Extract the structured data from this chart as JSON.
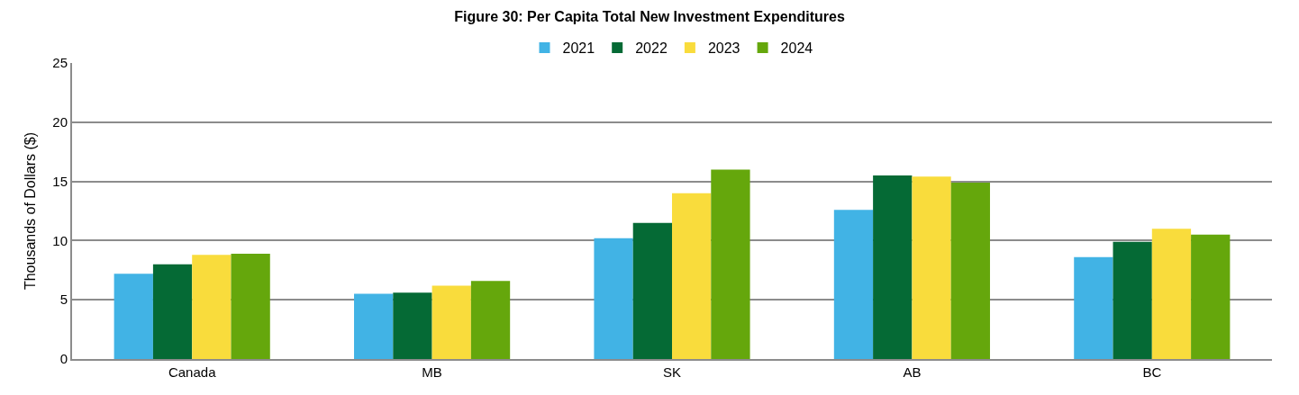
{
  "chart_data": {
    "type": "bar",
    "title": "Figure 30: Per Capita Total New Investment Expenditures",
    "ylabel": "Thousands of Dollars ($)",
    "categories": [
      "Canada",
      "MB",
      "SK",
      "AB",
      "BC"
    ],
    "series": [
      {
        "name": "2021",
        "color": "#41b3e5",
        "values": [
          7.2,
          5.5,
          10.2,
          12.6,
          8.6
        ]
      },
      {
        "name": "2022",
        "color": "#056a35",
        "values": [
          8.0,
          5.6,
          11.5,
          15.5,
          9.9
        ]
      },
      {
        "name": "2023",
        "color": "#f9dc3c",
        "values": [
          8.8,
          6.2,
          14.0,
          15.4,
          11.0
        ]
      },
      {
        "name": "2024",
        "color": "#65a70c",
        "values": [
          8.9,
          6.6,
          16.0,
          14.9,
          10.5
        ]
      }
    ],
    "ylim": [
      0,
      25
    ],
    "yticks": [
      0,
      5,
      10,
      15,
      20,
      25
    ],
    "grid": "y",
    "legend": "top"
  }
}
